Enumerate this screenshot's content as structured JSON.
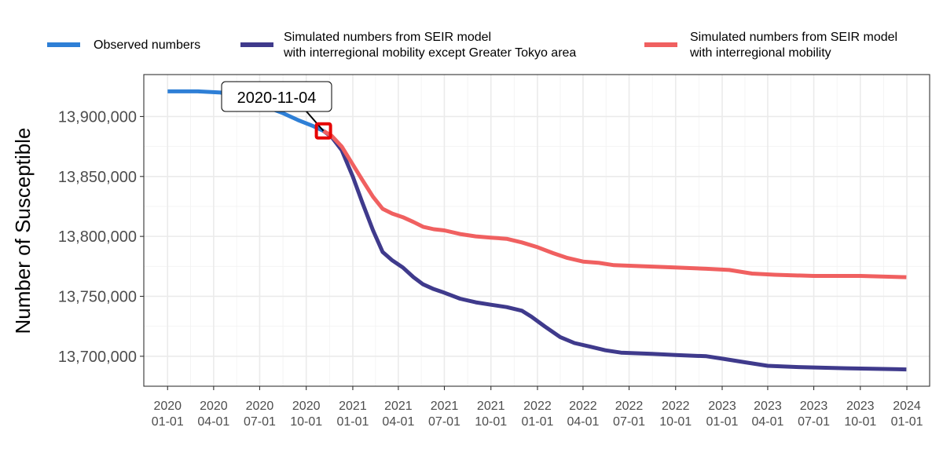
{
  "chart_data": {
    "type": "line",
    "title": "",
    "xlabel": "",
    "ylabel": "Number of Susceptible",
    "x_ticks": [
      [
        "2020",
        "01-01"
      ],
      [
        "2020",
        "04-01"
      ],
      [
        "2020",
        "07-01"
      ],
      [
        "2020",
        "10-01"
      ],
      [
        "2021",
        "01-01"
      ],
      [
        "2021",
        "04-01"
      ],
      [
        "2021",
        "07-01"
      ],
      [
        "2021",
        "10-01"
      ],
      [
        "2022",
        "01-01"
      ],
      [
        "2022",
        "04-01"
      ],
      [
        "2022",
        "07-01"
      ],
      [
        "2022",
        "10-01"
      ],
      [
        "2023",
        "01-01"
      ],
      [
        "2023",
        "04-01"
      ],
      [
        "2023",
        "07-01"
      ],
      [
        "2023",
        "10-01"
      ],
      [
        "2024",
        "01-01"
      ]
    ],
    "y_ticks": [
      "13,700,000",
      "13,750,000",
      "13,800,000",
      "13,850,000",
      "13,900,000"
    ],
    "y_tick_values": [
      13700000,
      13750000,
      13800000,
      13850000,
      13900000
    ],
    "xlim": [
      "2019-11-15",
      "2024-02-15"
    ],
    "ylim": [
      13675000,
      13935000
    ],
    "grid": true,
    "legend_position": "top",
    "annotation": {
      "text": "2020-11-04",
      "date": "2020-11-04",
      "value": 13888000,
      "marker_color": "#e60000"
    },
    "series": [
      {
        "name": "Observed numbers",
        "color": "#2e7fd6",
        "points": [
          [
            "2020-01-01",
            13921000
          ],
          [
            "2020-03-01",
            13921000
          ],
          [
            "2020-04-15",
            13920000
          ],
          [
            "2020-05-15",
            13916000
          ],
          [
            "2020-06-15",
            13913000
          ],
          [
            "2020-07-15",
            13908000
          ],
          [
            "2020-08-15",
            13903000
          ],
          [
            "2020-09-15",
            13897000
          ],
          [
            "2020-10-15",
            13892000
          ],
          [
            "2020-11-04",
            13888000
          ]
        ]
      },
      {
        "name": "Simulated numbers from SEIR model\nwith interregional mobility except Greater Tokyo area",
        "color": "#3f3a8c",
        "points": [
          [
            "2020-11-04",
            13888000
          ],
          [
            "2020-11-20",
            13883000
          ],
          [
            "2020-12-10",
            13872000
          ],
          [
            "2021-01-01",
            13850000
          ],
          [
            "2021-01-20",
            13828000
          ],
          [
            "2021-02-10",
            13805000
          ],
          [
            "2021-03-01",
            13787000
          ],
          [
            "2021-03-20",
            13780000
          ],
          [
            "2021-04-10",
            13774000
          ],
          [
            "2021-05-01",
            13766000
          ],
          [
            "2021-05-20",
            13760000
          ],
          [
            "2021-06-10",
            13756000
          ],
          [
            "2021-07-01",
            13753000
          ],
          [
            "2021-08-01",
            13748000
          ],
          [
            "2021-09-01",
            13745000
          ],
          [
            "2021-10-01",
            13743000
          ],
          [
            "2021-11-01",
            13741000
          ],
          [
            "2021-12-01",
            13738000
          ],
          [
            "2021-12-20",
            13733000
          ],
          [
            "2022-01-15",
            13725000
          ],
          [
            "2022-02-15",
            13716000
          ],
          [
            "2022-03-15",
            13711000
          ],
          [
            "2022-04-15",
            13708000
          ],
          [
            "2022-05-15",
            13705000
          ],
          [
            "2022-06-15",
            13703000
          ],
          [
            "2022-08-15",
            13702000
          ],
          [
            "2022-10-01",
            13701000
          ],
          [
            "2022-12-01",
            13700000
          ],
          [
            "2023-01-01",
            13698000
          ],
          [
            "2023-02-15",
            13695000
          ],
          [
            "2023-04-01",
            13692000
          ],
          [
            "2023-06-01",
            13691000
          ],
          [
            "2023-09-01",
            13690000
          ],
          [
            "2023-12-31",
            13689000
          ]
        ]
      },
      {
        "name": "Simulated numbers from SEIR model\nwith interregional mobility",
        "color": "#f06060",
        "points": [
          [
            "2020-11-04",
            13888000
          ],
          [
            "2020-11-20",
            13884000
          ],
          [
            "2020-12-10",
            13875000
          ],
          [
            "2021-01-01",
            13860000
          ],
          [
            "2021-01-20",
            13847000
          ],
          [
            "2021-02-10",
            13833000
          ],
          [
            "2021-03-01",
            13823000
          ],
          [
            "2021-03-20",
            13819000
          ],
          [
            "2021-04-10",
            13816000
          ],
          [
            "2021-05-01",
            13812000
          ],
          [
            "2021-05-20",
            13808000
          ],
          [
            "2021-06-10",
            13806000
          ],
          [
            "2021-07-01",
            13805000
          ],
          [
            "2021-08-01",
            13802000
          ],
          [
            "2021-09-01",
            13800000
          ],
          [
            "2021-10-01",
            13799000
          ],
          [
            "2021-11-01",
            13798000
          ],
          [
            "2021-12-01",
            13795000
          ],
          [
            "2022-01-01",
            13791000
          ],
          [
            "2022-02-01",
            13786000
          ],
          [
            "2022-03-01",
            13782000
          ],
          [
            "2022-04-01",
            13779000
          ],
          [
            "2022-05-01",
            13778000
          ],
          [
            "2022-06-01",
            13776000
          ],
          [
            "2022-08-01",
            13775000
          ],
          [
            "2022-10-01",
            13774000
          ],
          [
            "2022-12-01",
            13773000
          ],
          [
            "2023-01-15",
            13772000
          ],
          [
            "2023-03-01",
            13769000
          ],
          [
            "2023-04-15",
            13768000
          ],
          [
            "2023-07-01",
            13767000
          ],
          [
            "2023-10-01",
            13767000
          ],
          [
            "2023-12-31",
            13766000
          ]
        ]
      }
    ]
  }
}
